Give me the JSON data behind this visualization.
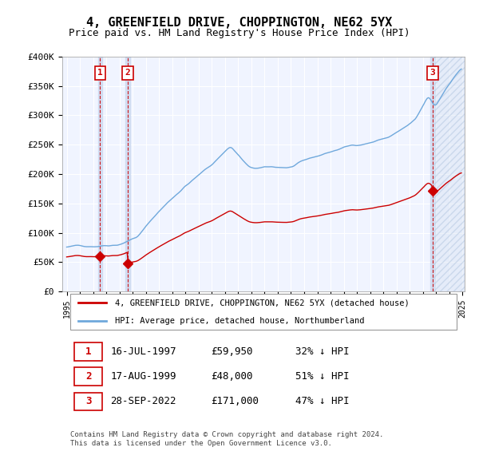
{
  "title": "4, GREENFIELD DRIVE, CHOPPINGTON, NE62 5YX",
  "subtitle": "Price paid vs. HM Land Registry's House Price Index (HPI)",
  "legend_red": "4, GREENFIELD DRIVE, CHOPPINGTON, NE62 5YX (detached house)",
  "legend_blue": "HPI: Average price, detached house, Northumberland",
  "footer": "Contains HM Land Registry data © Crown copyright and database right 2024.\nThis data is licensed under the Open Government Licence v3.0.",
  "table": [
    [
      "1",
      "16-JUL-1997",
      "£59,950",
      "32% ↓ HPI"
    ],
    [
      "2",
      "17-AUG-1999",
      "£48,000",
      "51% ↓ HPI"
    ],
    [
      "3",
      "28-SEP-2022",
      "£171,000",
      "47% ↓ HPI"
    ]
  ],
  "sales": [
    {
      "date": "1997-07-16",
      "price": 59950,
      "label": "1"
    },
    {
      "date": "1999-08-17",
      "price": 48000,
      "label": "2"
    },
    {
      "date": "2022-09-28",
      "price": 171000,
      "label": "3"
    }
  ],
  "ylim": [
    0,
    400000
  ],
  "yticks": [
    0,
    50000,
    100000,
    150000,
    200000,
    250000,
    300000,
    350000,
    400000
  ],
  "background_color": "#ffffff",
  "plot_bg_color": "#f0f4ff",
  "grid_color": "#ffffff",
  "hpi_color": "#6fa8dc",
  "price_color": "#cc0000",
  "sale_marker_color": "#cc0000",
  "vline_color": "#cc0000",
  "vband_color": "#ccd9f0",
  "future_hatch_color": "#c8d4e8"
}
